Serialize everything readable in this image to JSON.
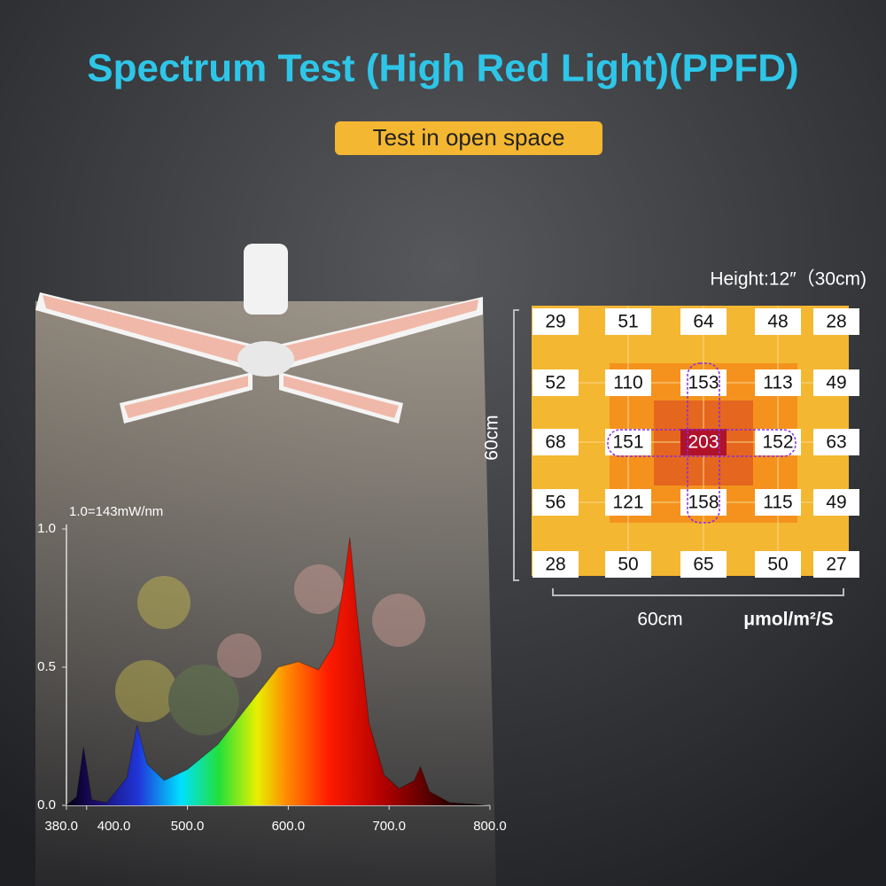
{
  "header": {
    "title": "Spectrum Test (High Red Light)(PPFD)",
    "badge": "Test in open space"
  },
  "ppfd": {
    "height_label": "Height:12″（30cm)",
    "side_label": "60cm",
    "bottom_label": "60cm",
    "unit": "μmol/m²/S",
    "rows": [
      [
        29,
        51,
        64,
        48,
        28
      ],
      [
        52,
        110,
        153,
        113,
        49
      ],
      [
        68,
        151,
        203,
        152,
        63
      ],
      [
        56,
        121,
        158,
        115,
        49
      ],
      [
        28,
        50,
        65,
        50,
        27
      ]
    ]
  },
  "chart_data": {
    "type": "area",
    "annotation": "1.0=143mW/nm",
    "x": [
      380,
      390,
      397,
      405,
      420,
      440,
      450,
      460,
      477,
      500,
      530,
      560,
      590,
      610,
      630,
      645,
      655,
      661,
      668,
      680,
      695,
      710,
      725,
      731,
      740,
      760,
      800
    ],
    "values": [
      0,
      0.03,
      0.21,
      0.02,
      0.01,
      0.1,
      0.29,
      0.15,
      0.09,
      0.13,
      0.22,
      0.36,
      0.5,
      0.52,
      0.49,
      0.58,
      0.8,
      0.97,
      0.7,
      0.3,
      0.11,
      0.06,
      0.09,
      0.14,
      0.05,
      0.01,
      0
    ],
    "xlim": [
      380,
      800
    ],
    "ylim": [
      0,
      1
    ],
    "xticks": [
      {
        "value": 380,
        "label": "380.0"
      },
      {
        "value": 400,
        "label": "400.0"
      },
      {
        "value": 500,
        "label": "500.0"
      },
      {
        "value": 600,
        "label": "600.0"
      },
      {
        "value": 700,
        "label": "700.0"
      },
      {
        "value": 800,
        "label": "800.0"
      }
    ],
    "yticks": [
      {
        "value": 0,
        "label": "0.0"
      },
      {
        "value": 0.5,
        "label": "0.5"
      },
      {
        "value": 1,
        "label": "1.0"
      }
    ]
  }
}
